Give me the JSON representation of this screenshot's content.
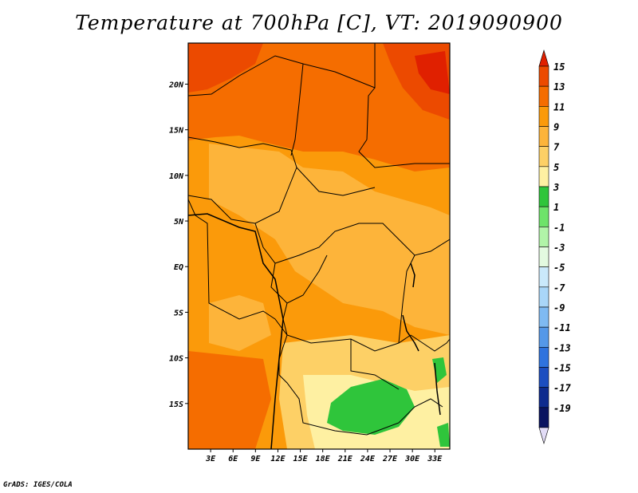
{
  "title": "Temperature at 700hPa [C], VT: 2019090900",
  "credit": "GrADS: IGES/COLA",
  "map": {
    "lat_labels": [
      "20N",
      "15N",
      "10N",
      "5N",
      "EQ",
      "5S",
      "10S",
      "15S"
    ],
    "lon_labels": [
      "3E",
      "6E",
      "9E",
      "12E",
      "15E",
      "18E",
      "21E",
      "24E",
      "27E",
      "30E",
      "33E"
    ],
    "lat_values": [
      20,
      15,
      10,
      5,
      0,
      -5,
      -10,
      -15
    ],
    "lon_values": [
      3,
      6,
      9,
      12,
      15,
      18,
      21,
      24,
      27,
      30,
      33
    ],
    "lat_range": [
      -20,
      24.5
    ],
    "lon_range": [
      0,
      35
    ]
  },
  "legend": {
    "labels": [
      "15",
      "13",
      "11",
      "9",
      "7",
      "5",
      "3",
      "1",
      "-1",
      "-3",
      "-5",
      "-7",
      "-9",
      "-11",
      "-13",
      "-15",
      "-17",
      "-19"
    ],
    "colors": [
      "#e02000",
      "#ec4a00",
      "#f56d00",
      "#fb9a0a",
      "#fdb43a",
      "#fdd066",
      "#fef0a2",
      "#2fc53b",
      "#6ee36a",
      "#b1f4a8",
      "#e3fae0",
      "#cae9fb",
      "#a9d6f8",
      "#7fbaf2",
      "#5598e8",
      "#2f73de",
      "#1c4ec0",
      "#0e2b8e",
      "#0a1460",
      "#e2dcf6"
    ]
  }
}
